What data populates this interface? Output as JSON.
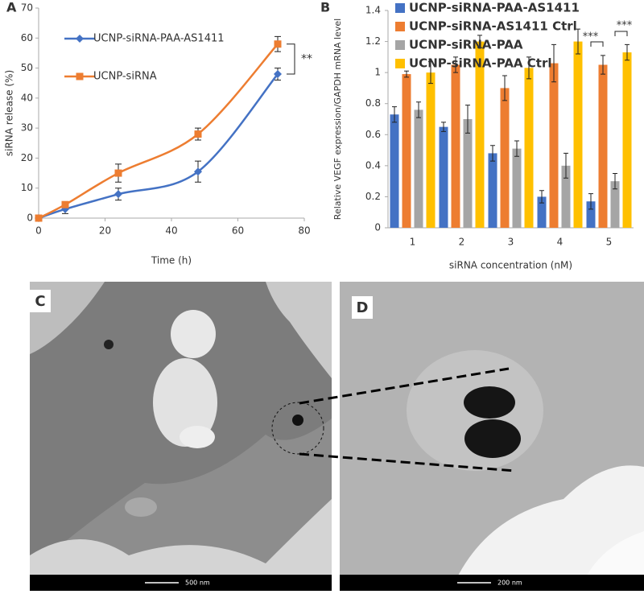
{
  "chart_data": [
    {
      "type": "line",
      "panel_label": "A",
      "x_label": "Time (h)",
      "y_label": "siRNA release (%)",
      "x": [
        0,
        8,
        24,
        48,
        72
      ],
      "series": [
        {
          "name": "UCNP-siRNA-PAA-AS1411",
          "color": "#4472c4",
          "marker": "diamond",
          "values": [
            0,
            3,
            8,
            15.5,
            48
          ],
          "errors": [
            0,
            1.5,
            2,
            3.5,
            2
          ]
        },
        {
          "name": "UCNP-siRNA",
          "color": "#ed7d31",
          "marker": "square",
          "values": [
            0,
            4.5,
            15,
            28,
            58
          ],
          "errors": [
            0,
            1,
            3,
            2,
            2.5
          ]
        }
      ],
      "xlim": [
        0,
        80
      ],
      "xticks": [
        0,
        20,
        40,
        60,
        80
      ],
      "ylim": [
        0,
        70
      ],
      "yticks": [
        0,
        10,
        20,
        30,
        40,
        50,
        60,
        70
      ],
      "annotations": [
        "**"
      ]
    },
    {
      "type": "bar",
      "panel_label": "B",
      "x_label": "siRNA concentration (nM)",
      "y_label": "Relative VEGF expression/GAPDH mRNA level",
      "categories": [
        "1",
        "2",
        "3",
        "4",
        "5"
      ],
      "series": [
        {
          "name": "UCNP-siRNA-PAA-AS1411",
          "color": "#4472c4",
          "values": [
            0.73,
            0.65,
            0.48,
            0.2,
            0.17
          ],
          "errors": [
            0.05,
            0.03,
            0.05,
            0.04,
            0.05
          ]
        },
        {
          "name": "UCNP-siRNA-AS1411 Ctrl",
          "color": "#ed7d31",
          "values": [
            0.99,
            1.05,
            0.9,
            1.06,
            1.05
          ],
          "errors": [
            0.02,
            0.05,
            0.08,
            0.12,
            0.06
          ]
        },
        {
          "name": "UCNP-siRNA-PAA",
          "color": "#a5a5a5",
          "values": [
            0.76,
            0.7,
            0.51,
            0.4,
            0.3
          ],
          "errors": [
            0.05,
            0.09,
            0.05,
            0.08,
            0.05
          ]
        },
        {
          "name": "UCNP-siRNA-PAA Ctrl",
          "color": "#ffc000",
          "values": [
            1.0,
            1.2,
            1.03,
            1.2,
            1.13
          ],
          "errors": [
            0.07,
            0.04,
            0.07,
            0.08,
            0.05
          ]
        }
      ],
      "ylim": [
        0,
        1.4
      ],
      "yticks": [
        0,
        0.2,
        0.4,
        0.6,
        0.8,
        1,
        1.2,
        1.4
      ],
      "annotations": [
        "***",
        "***"
      ]
    }
  ],
  "images": [
    {
      "label": "C",
      "scale_bar": "500 nm"
    },
    {
      "label": "D",
      "scale_bar": "200 nm"
    }
  ]
}
